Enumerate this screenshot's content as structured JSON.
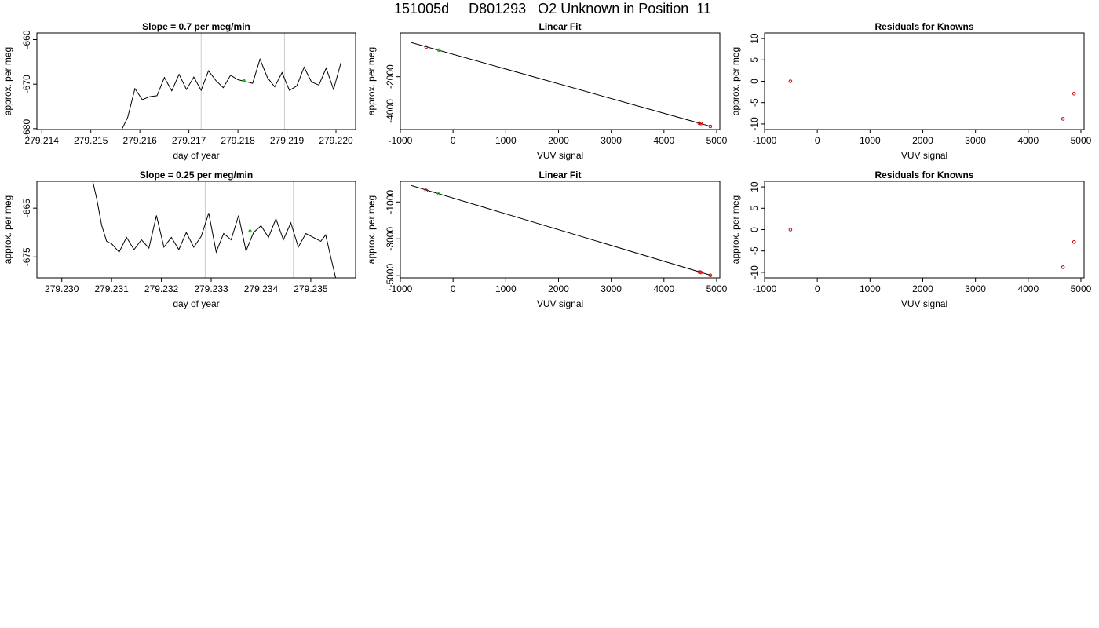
{
  "page_title": "151005d     D801293   O2 Unknown in Position  11",
  "chart_data": [
    {
      "id": "trace-top",
      "type": "line",
      "title": "Slope =  0.7  per meg/min",
      "xlabel": "day of year",
      "ylabel": "approx. per meg",
      "xlim": [
        279.2139,
        279.2204
      ],
      "ylim": [
        -680.2,
        -658.5
      ],
      "xticks": [
        279.214,
        279.215,
        279.216,
        279.217,
        279.218,
        279.219,
        279.22
      ],
      "xtick_labels": [
        "279.214",
        "279.215",
        "279.216",
        "279.217",
        "279.218",
        "279.219",
        "279.220"
      ],
      "yticks": [
        -680,
        -670,
        -660
      ],
      "ytick_labels": [
        "-680",
        "-670",
        "-660"
      ],
      "vlines": [
        279.21725,
        279.21895
      ],
      "vline_color": "#cccccc",
      "line_color": "#000000",
      "marker_color": "#00cc00",
      "x": [
        279.21563,
        279.21575,
        279.2159,
        279.21605,
        279.2162,
        279.21635,
        279.2165,
        279.21665,
        279.2168,
        279.21695,
        279.2171,
        279.21725,
        279.2174,
        279.21755,
        279.2177,
        279.21785,
        279.218,
        279.21815,
        279.2183,
        279.21845,
        279.2186,
        279.21875,
        279.2189,
        279.21905,
        279.2192,
        279.21935,
        279.2195,
        279.21965,
        279.2198,
        279.21995,
        279.2201
      ],
      "values": [
        -680.2,
        -677.5,
        -671.0,
        -673.5,
        -672.8,
        -672.6,
        -668.5,
        -671.5,
        -667.8,
        -671.2,
        -668.4,
        -671.4,
        -667.0,
        -669.2,
        -670.8,
        -668.0,
        -669.0,
        -669.4,
        -669.8,
        -664.4,
        -668.5,
        -670.6,
        -667.4,
        -671.4,
        -670.4,
        -666.2,
        -669.5,
        -670.2,
        -666.4,
        -671.2,
        -665.2
      ],
      "highlight": {
        "x": 279.21812,
        "y": -669.2
      }
    },
    {
      "id": "fit-top",
      "type": "scatter",
      "title": "Linear Fit",
      "xlabel": "VUV signal",
      "ylabel": "approx. per meg",
      "xlim": [
        -1000,
        5060
      ],
      "ylim": [
        -5070,
        540
      ],
      "xticks": [
        -1000,
        0,
        1000,
        2000,
        3000,
        4000,
        5000
      ],
      "xtick_labels": [
        "-1000",
        "0",
        "1000",
        "2000",
        "3000",
        "4000",
        "5000"
      ],
      "yticks": [
        -4000,
        -2000
      ],
      "ytick_labels": [
        "-4000",
        "-2000"
      ],
      "fit_line": {
        "x": [
          -790,
          4890
        ],
        "y": [
          -20,
          -4890
        ]
      },
      "knowns": {
        "x": [
          -510,
          4670,
          4700,
          4880
        ],
        "y": [
          -280,
          -4700,
          -4720,
          -4890
        ]
      },
      "unknown": {
        "x": [
          -270
        ],
        "y": [
          -460
        ]
      },
      "known_color": "#cc0000",
      "unknown_color": "#00cc00"
    },
    {
      "id": "resid-top",
      "type": "scatter",
      "title": "Residuals for Knowns",
      "xlabel": "VUV signal",
      "ylabel": "approx. per meg",
      "xlim": [
        -1000,
        5060
      ],
      "ylim": [
        -11.3,
        11.3
      ],
      "xticks": [
        -1000,
        0,
        1000,
        2000,
        3000,
        4000,
        5000
      ],
      "xtick_labels": [
        "-1000",
        "0",
        "1000",
        "2000",
        "3000",
        "4000",
        "5000"
      ],
      "yticks": [
        -10,
        -5,
        0,
        5,
        10
      ],
      "ytick_labels": [
        "-10",
        "-5",
        "0",
        "5",
        "10"
      ],
      "points": {
        "x": [
          -510,
          4660,
          4870
        ],
        "y": [
          0.0,
          -8.8,
          -2.9
        ]
      },
      "point_color": "#cc0000"
    },
    {
      "id": "trace-bottom",
      "type": "line",
      "title": "Slope =  0.25  per meg/min",
      "xlabel": "day of year",
      "ylabel": "approx. per meg",
      "xlim": [
        279.2295,
        279.2359
      ],
      "ylim": [
        -679.3,
        -659.5
      ],
      "xticks": [
        279.23,
        279.231,
        279.232,
        279.233,
        279.234,
        279.235
      ],
      "xtick_labels": [
        "279.230",
        "279.231",
        "279.232",
        "279.233",
        "279.234",
        "279.235"
      ],
      "yticks": [
        -675,
        -665
      ],
      "ytick_labels": [
        "-675",
        "-665"
      ],
      "vlines": [
        279.23288,
        279.23465
      ],
      "vline_color": "#cccccc",
      "line_color": "#000000",
      "marker_color": "#00cc00",
      "x": [
        279.23062,
        279.2307,
        279.2308,
        279.2309,
        279.231,
        279.23115,
        279.2313,
        279.23145,
        279.2316,
        279.23175,
        279.2319,
        279.23205,
        279.2322,
        279.23235,
        279.2325,
        279.23265,
        279.2328,
        279.23295,
        279.2331,
        279.23325,
        279.2334,
        279.23355,
        279.2337,
        279.23385,
        279.234,
        279.23415,
        279.2343,
        279.23445,
        279.2346,
        279.23475,
        279.2349,
        279.23505,
        279.2352,
        279.2353,
        279.2354,
        279.2355
      ],
      "values": [
        -659.5,
        -663.0,
        -668.5,
        -671.8,
        -672.3,
        -674.0,
        -671.0,
        -673.5,
        -671.5,
        -673.2,
        -666.5,
        -673.0,
        -671.0,
        -673.5,
        -670.0,
        -673.0,
        -670.8,
        -666.0,
        -674.0,
        -670.2,
        -671.5,
        -666.5,
        -673.8,
        -670.0,
        -668.6,
        -671.0,
        -667.2,
        -671.5,
        -668.0,
        -673.0,
        -670.2,
        -671.0,
        -671.8,
        -670.5,
        -675.0,
        -679.3
      ],
      "highlight": {
        "x": 279.23378,
        "y": -669.7
      }
    },
    {
      "id": "fit-bottom",
      "type": "scatter",
      "title": "Linear Fit",
      "xlabel": "VUV signal",
      "ylabel": "approx. per meg",
      "xlim": [
        -1000,
        5060
      ],
      "ylim": [
        -5120,
        120
      ],
      "xticks": [
        -1000,
        0,
        1000,
        2000,
        3000,
        4000,
        5000
      ],
      "xtick_labels": [
        "-1000",
        "0",
        "1000",
        "2000",
        "3000",
        "4000",
        "5000"
      ],
      "yticks": [
        -5000,
        -3000,
        -1000
      ],
      "ytick_labels": [
        "-5000",
        "-3000",
        "-1000"
      ],
      "fit_line": {
        "x": [
          -790,
          4890
        ],
        "y": [
          -110,
          -4980
        ]
      },
      "knowns": {
        "x": [
          -510,
          4670,
          4700,
          4880
        ],
        "y": [
          -380,
          -4800,
          -4820,
          -4980
        ]
      },
      "unknown": {
        "x": [
          -270
        ],
        "y": [
          -560
        ]
      },
      "known_color": "#cc0000",
      "unknown_color": "#00cc00"
    },
    {
      "id": "resid-bottom",
      "type": "scatter",
      "title": "Residuals for Knowns",
      "xlabel": "VUV signal",
      "ylabel": "approx. per meg",
      "xlim": [
        -1000,
        5060
      ],
      "ylim": [
        -11.3,
        11.3
      ],
      "xticks": [
        -1000,
        0,
        1000,
        2000,
        3000,
        4000,
        5000
      ],
      "xtick_labels": [
        "-1000",
        "0",
        "1000",
        "2000",
        "3000",
        "4000",
        "5000"
      ],
      "yticks": [
        -10,
        -5,
        0,
        5,
        10
      ],
      "ytick_labels": [
        "-10",
        "-5",
        "0",
        "5",
        "10"
      ],
      "points": {
        "x": [
          -510,
          4660,
          4870
        ],
        "y": [
          0.0,
          -8.8,
          -2.9
        ]
      },
      "point_color": "#cc0000"
    }
  ]
}
